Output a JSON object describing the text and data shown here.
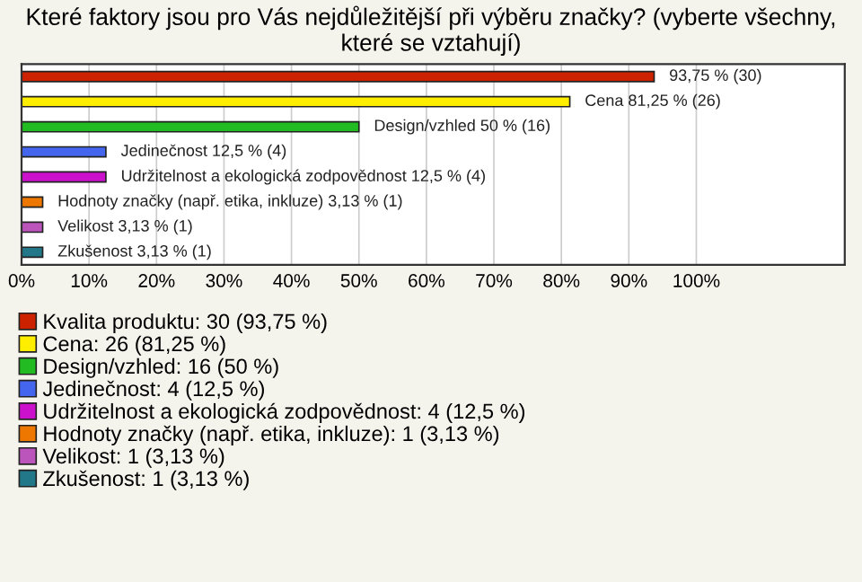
{
  "chart_data": {
    "type": "bar",
    "orientation": "horizontal",
    "title": "Které faktory jsou pro Vás nejdůležitější při výběru značky? (vyberte všechny, které se vztahují)",
    "categories": [
      null,
      null,
      null,
      null,
      null,
      null,
      null,
      null
    ],
    "series": [
      {
        "name": "Kvalita produktu: 30 (93,75 %)",
        "color": "#cc2200",
        "values": [
          93.75,
          null,
          null,
          null,
          null,
          null,
          null,
          null
        ],
        "value_labels": [
          "93,75 % (30)",
          null,
          null,
          null,
          null,
          null,
          null,
          null
        ]
      },
      {
        "name": "Cena: 26 (81,25 %)",
        "color": "#ffee00",
        "values": [
          null,
          81.25,
          null,
          null,
          null,
          null,
          null,
          null
        ],
        "value_labels": [
          null,
          "Cena 81,25 % (26)",
          null,
          null,
          null,
          null,
          null,
          null
        ]
      },
      {
        "name": "Design/vzhled: 16 (50 %)",
        "color": "#22bb22",
        "values": [
          null,
          null,
          50,
          null,
          null,
          null,
          null,
          null
        ],
        "value_labels": [
          null,
          null,
          "Design/vzhled 50 % (16)",
          null,
          null,
          null,
          null,
          null
        ]
      },
      {
        "name": "Jedinečnost: 4 (12,5 %)",
        "color": "#4466ee",
        "values": [
          null,
          null,
          null,
          12.5,
          null,
          null,
          null,
          null
        ],
        "value_labels": [
          null,
          null,
          null,
          "Jedinečnost 12,5 % (4)",
          null,
          null,
          null,
          null
        ]
      },
      {
        "name": "Udržitelnost a ekologická zodpovědnost: 4 (12,5 %)",
        "color": "#cc11cc",
        "values": [
          null,
          null,
          null,
          null,
          12.5,
          null,
          null,
          null
        ],
        "value_labels": [
          null,
          null,
          null,
          null,
          "Udržitelnost a ekologická zodpovědnost 12,5 % (4)",
          null,
          null,
          null
        ]
      },
      {
        "name": "Hodnoty značky (např. etika, inkluze): 1 (3,13 %)",
        "color": "#ee7700",
        "values": [
          null,
          null,
          null,
          null,
          null,
          3.13,
          null,
          null
        ],
        "value_labels": [
          null,
          null,
          null,
          null,
          null,
          "Hodnoty značky (např. etika, inkluze) 3,13 % (1)",
          null,
          null
        ]
      },
      {
        "name": "Velikost: 1 (3,13 %)",
        "color": "#bb55bb",
        "values": [
          null,
          null,
          null,
          null,
          null,
          null,
          3.13,
          null
        ],
        "value_labels": [
          null,
          null,
          null,
          null,
          null,
          null,
          "Velikost 3,13 % (1)",
          null
        ]
      },
      {
        "name": "Zkušenost: 1 (3,13 %)",
        "color": "#227788",
        "values": [
          null,
          null,
          null,
          null,
          null,
          null,
          null,
          3.13
        ],
        "value_labels": [
          null,
          null,
          null,
          null,
          null,
          null,
          null,
          "Zkušenost 3,13 % (1)"
        ]
      }
    ],
    "xlim": [
      0,
      122
    ],
    "xticks": [
      {
        "value": 0,
        "label": "0%"
      },
      {
        "value": 10,
        "label": "10%"
      },
      {
        "value": 20,
        "label": "20%"
      },
      {
        "value": 30,
        "label": "30%"
      },
      {
        "value": 40,
        "label": "40%"
      },
      {
        "value": 50,
        "label": "50%"
      },
      {
        "value": 60,
        "label": "60%"
      },
      {
        "value": 70,
        "label": "70%"
      },
      {
        "value": 80,
        "label": "80%"
      },
      {
        "value": 90,
        "label": "90%"
      },
      {
        "value": 100,
        "label": "100%"
      }
    ],
    "grid": "x",
    "legend": "bottom"
  }
}
